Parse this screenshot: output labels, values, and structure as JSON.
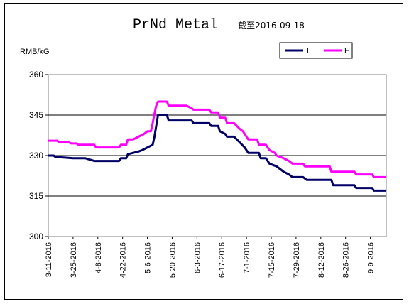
{
  "chart_data": {
    "type": "line",
    "title": "PrNd Metal",
    "subtitle": "截至2016-09-18",
    "ylabel": "RMB/kG",
    "ylim": [
      300,
      360
    ],
    "yticks": [
      "300",
      "315",
      "330",
      "345",
      "360"
    ],
    "grid": "horizontal",
    "legend_position": "top-right",
    "xticks": [
      "3-11-2016",
      "3-25-2016",
      "4-8-2016",
      "4-22-2016",
      "5-6-2016",
      "5-20-2016",
      "6-3-2016",
      "6-17-2016",
      "7-1-2016",
      "7-15-2016",
      "7-29-2016",
      "8-12-2016",
      "8-26-2016",
      "9-9-2016"
    ],
    "x_start": "2016-03-11",
    "x_end": "2016-09-18",
    "series": [
      {
        "name": "L",
        "color": "#000066",
        "points": [
          [
            "2016-03-11",
            330
          ],
          [
            "2016-03-14",
            330
          ],
          [
            "2016-03-15",
            329.5
          ],
          [
            "2016-03-25",
            329
          ],
          [
            "2016-04-01",
            329
          ],
          [
            "2016-04-06",
            328
          ],
          [
            "2016-04-20",
            328
          ],
          [
            "2016-04-21",
            329
          ],
          [
            "2016-04-24",
            329
          ],
          [
            "2016-04-25",
            330.5
          ],
          [
            "2016-04-28",
            331
          ],
          [
            "2016-05-01",
            331.5
          ],
          [
            "2016-05-03",
            332
          ],
          [
            "2016-05-06",
            333
          ],
          [
            "2016-05-09",
            334
          ],
          [
            "2016-05-10",
            337
          ],
          [
            "2016-05-11",
            341
          ],
          [
            "2016-05-12",
            345
          ],
          [
            "2016-05-17",
            345
          ],
          [
            "2016-05-18",
            343
          ],
          [
            "2016-05-31",
            343
          ],
          [
            "2016-06-01",
            342
          ],
          [
            "2016-06-10",
            342
          ],
          [
            "2016-06-11",
            341
          ],
          [
            "2016-06-15",
            341
          ],
          [
            "2016-06-16",
            339
          ],
          [
            "2016-06-19",
            338
          ],
          [
            "2016-06-20",
            337
          ],
          [
            "2016-06-24",
            337
          ],
          [
            "2016-06-27",
            335
          ],
          [
            "2016-06-30",
            333
          ],
          [
            "2016-07-02",
            331
          ],
          [
            "2016-07-08",
            331
          ],
          [
            "2016-07-09",
            329
          ],
          [
            "2016-07-12",
            329
          ],
          [
            "2016-07-14",
            327
          ],
          [
            "2016-07-18",
            326
          ],
          [
            "2016-07-20",
            325
          ],
          [
            "2016-07-22",
            324
          ],
          [
            "2016-07-25",
            323
          ],
          [
            "2016-07-27",
            322
          ],
          [
            "2016-08-02",
            322
          ],
          [
            "2016-08-04",
            321
          ],
          [
            "2016-08-18",
            321
          ],
          [
            "2016-08-19",
            319
          ],
          [
            "2016-08-31",
            319
          ],
          [
            "2016-09-01",
            318
          ],
          [
            "2016-09-10",
            318
          ],
          [
            "2016-09-11",
            317
          ],
          [
            "2016-09-18",
            317
          ]
        ]
      },
      {
        "name": "H",
        "color": "#ff00ff",
        "points": [
          [
            "2016-03-11",
            335.5
          ],
          [
            "2016-03-16",
            335.5
          ],
          [
            "2016-03-17",
            335
          ],
          [
            "2016-03-22",
            335
          ],
          [
            "2016-03-24",
            334.5
          ],
          [
            "2016-03-27",
            334.5
          ],
          [
            "2016-03-28",
            334
          ],
          [
            "2016-04-06",
            334
          ],
          [
            "2016-04-07",
            333
          ],
          [
            "2016-04-20",
            333
          ],
          [
            "2016-04-21",
            334
          ],
          [
            "2016-04-24",
            334
          ],
          [
            "2016-04-25",
            336
          ],
          [
            "2016-04-28",
            336
          ],
          [
            "2016-05-01",
            337
          ],
          [
            "2016-05-04",
            338
          ],
          [
            "2016-05-06",
            339
          ],
          [
            "2016-05-08",
            339
          ],
          [
            "2016-05-09",
            342
          ],
          [
            "2016-05-10",
            345.5
          ],
          [
            "2016-05-11",
            348.5
          ],
          [
            "2016-05-12",
            350
          ],
          [
            "2016-05-17",
            350
          ],
          [
            "2016-05-18",
            348.5
          ],
          [
            "2016-05-28",
            348.5
          ],
          [
            "2016-05-31",
            347.5
          ],
          [
            "2016-06-01",
            347
          ],
          [
            "2016-06-10",
            347
          ],
          [
            "2016-06-11",
            346
          ],
          [
            "2016-06-15",
            346
          ],
          [
            "2016-06-16",
            344
          ],
          [
            "2016-06-19",
            344
          ],
          [
            "2016-06-20",
            342
          ],
          [
            "2016-06-24",
            342
          ],
          [
            "2016-06-27",
            340
          ],
          [
            "2016-06-29",
            339
          ],
          [
            "2016-06-30",
            338
          ],
          [
            "2016-07-02",
            336
          ],
          [
            "2016-07-07",
            336
          ],
          [
            "2016-07-08",
            334
          ],
          [
            "2016-07-12",
            334
          ],
          [
            "2016-07-14",
            332
          ],
          [
            "2016-07-17",
            331
          ],
          [
            "2016-07-18",
            330
          ],
          [
            "2016-07-22",
            329
          ],
          [
            "2016-07-25",
            328
          ],
          [
            "2016-07-27",
            327
          ],
          [
            "2016-08-02",
            327
          ],
          [
            "2016-08-03",
            326
          ],
          [
            "2016-08-17",
            326
          ],
          [
            "2016-08-18",
            324
          ],
          [
            "2016-08-31",
            324
          ],
          [
            "2016-09-01",
            323
          ],
          [
            "2016-09-10",
            323
          ],
          [
            "2016-09-11",
            322
          ],
          [
            "2016-09-18",
            322
          ]
        ]
      }
    ]
  }
}
